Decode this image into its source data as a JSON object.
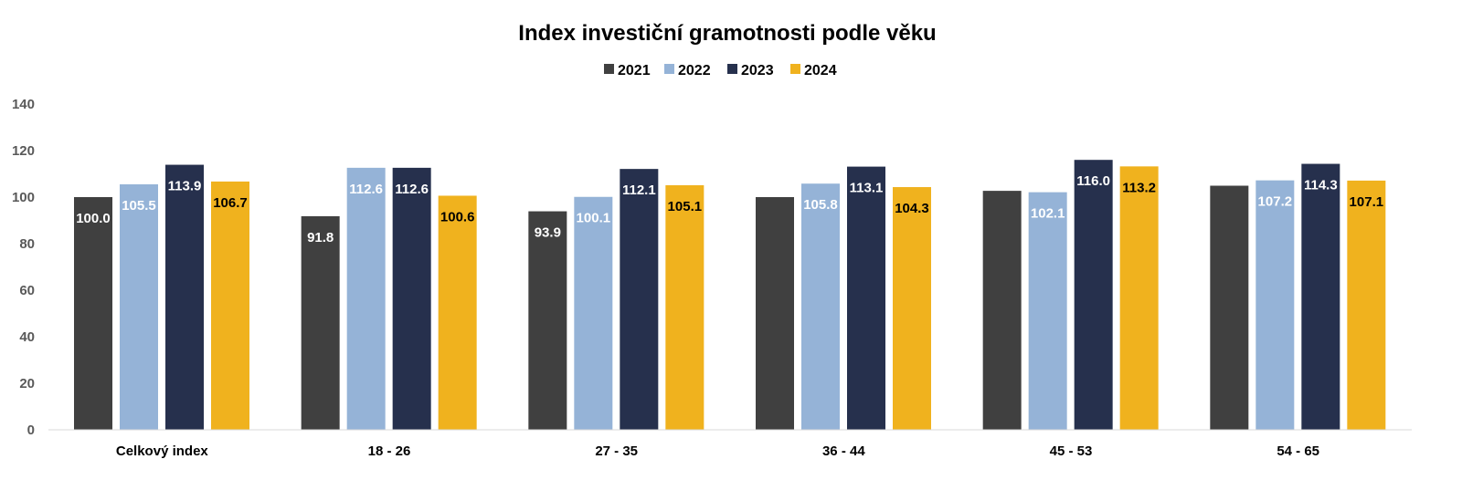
{
  "chart_data": {
    "type": "bar",
    "title": "Index investiční gramotnosti podle věku",
    "xlabel": "",
    "ylabel": "",
    "ylim": [
      0,
      140
    ],
    "yticks": [
      0,
      20,
      40,
      60,
      80,
      100,
      120,
      140
    ],
    "grid": false,
    "legend": "top-center",
    "categories": [
      "Celkový index",
      "18 - 26",
      "27 - 35",
      "36 - 44",
      "45 - 53",
      "54 - 65"
    ],
    "series": [
      {
        "name": "2021",
        "color": "#404040",
        "label_color": "#ffffff",
        "values": [
          100.0,
          91.8,
          93.9,
          100.0,
          102.7,
          104.9
        ],
        "labels": [
          "100.0",
          "91.8",
          "93.9",
          "",
          "",
          ""
        ]
      },
      {
        "name": "2022",
        "color": "#95b3d7",
        "label_color": "#ffffff",
        "values": [
          105.5,
          112.6,
          100.1,
          105.8,
          102.1,
          107.2
        ],
        "labels": [
          "105.5",
          "112.6",
          "100.1",
          "105.8",
          "102.1",
          "107.2"
        ]
      },
      {
        "name": "2023",
        "color": "#26304d",
        "label_color": "#ffffff",
        "values": [
          113.9,
          112.6,
          112.1,
          113.1,
          116.0,
          114.3
        ],
        "labels": [
          "113.9",
          "112.6",
          "112.1",
          "113.1",
          "116.0",
          "114.3"
        ]
      },
      {
        "name": "2024",
        "color": "#f0b21e",
        "label_color": "#000000",
        "values": [
          106.7,
          100.6,
          105.1,
          104.3,
          113.2,
          107.1
        ],
        "labels": [
          "106.7",
          "100.6",
          "105.1",
          "104.3",
          "113.2",
          "107.1"
        ]
      }
    ]
  }
}
